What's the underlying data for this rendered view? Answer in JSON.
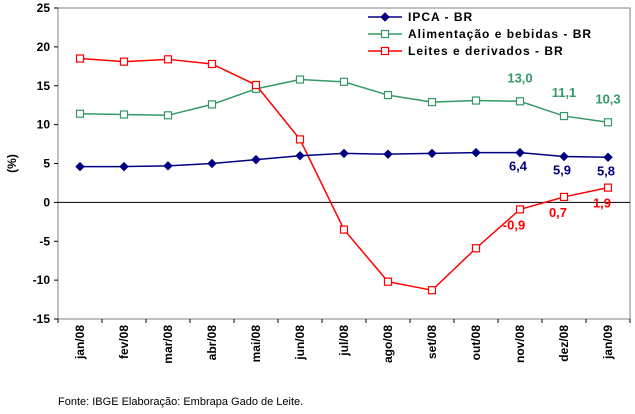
{
  "chart_data": {
    "type": "line",
    "categories": [
      "jan/08",
      "fev/08",
      "mar/08",
      "abr/08",
      "mai/08",
      "jun/08",
      "jul/08",
      "ago/08",
      "set/08",
      "out/08",
      "nov/08",
      "dez/08",
      "jan/09"
    ],
    "ylabel": "(%)",
    "xlabel": "",
    "ylim": [
      -15,
      25
    ],
    "yticks": [
      -15,
      -10,
      -5,
      0,
      5,
      10,
      15,
      20,
      25
    ],
    "grid": false,
    "legend_position": "top-right",
    "series": [
      {
        "name": "IPCA - BR",
        "color": "#000080",
        "marker": "diamond",
        "values": [
          4.6,
          4.6,
          4.7,
          5.0,
          5.5,
          6.0,
          6.3,
          6.2,
          6.3,
          6.4,
          6.4,
          5.9,
          5.8
        ]
      },
      {
        "name": "Alimentação e bebidas - BR",
        "color": "#339966",
        "marker": "square-open",
        "values": [
          11.4,
          11.3,
          11.2,
          12.6,
          14.6,
          15.8,
          15.5,
          13.8,
          12.9,
          13.1,
          13.0,
          11.1,
          10.3
        ]
      },
      {
        "name": "Leites e derivados - BR",
        "color": "#ff0000",
        "marker": "square-open",
        "values": [
          18.5,
          18.1,
          18.4,
          17.8,
          15.1,
          8.1,
          -3.5,
          -10.2,
          -11.3,
          -5.9,
          -0.9,
          0.7,
          1.9
        ]
      }
    ],
    "data_labels": [
      {
        "series": 0,
        "index": 10,
        "text": "6,4"
      },
      {
        "series": 0,
        "index": 11,
        "text": "5,9"
      },
      {
        "series": 0,
        "index": 12,
        "text": "5,8"
      },
      {
        "series": 1,
        "index": 10,
        "text": "13,0"
      },
      {
        "series": 1,
        "index": 11,
        "text": "11,1"
      },
      {
        "series": 1,
        "index": 12,
        "text": "10,3"
      },
      {
        "series": 2,
        "index": 10,
        "text": "-0,9"
      },
      {
        "series": 2,
        "index": 11,
        "text": "0,7"
      },
      {
        "series": 2,
        "index": 12,
        "text": "1,9"
      }
    ]
  },
  "footer": {
    "source": "Fonte: IBGE Elaboração: Embrapa Gado de Leite."
  }
}
